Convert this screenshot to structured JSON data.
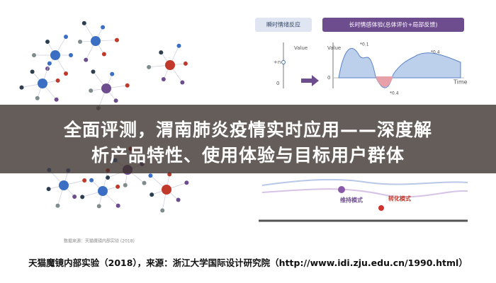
{
  "image": {
    "left_panel": {
      "source_note": "数据来源：天猫魔镜内部实验 (2018)"
    },
    "right_panel": {
      "instant_header": "瞬时情绪反应",
      "longterm_header": "长时情感体验(总体评价+局部反馈)",
      "value_label": "Value",
      "tick_n": "+n",
      "tick_zero": "0",
      "tick_zero_right": "0",
      "time_label": "Time",
      "annotations": [
        "*0.1",
        "*0.4",
        "*0.4"
      ],
      "modes": [
        "维持模式",
        "转化模式"
      ]
    }
  },
  "banner": {
    "line1": "全面评测，渭南肺炎疫情实时应用——深度解",
    "line2": "析产品特性、使用体验与目标用户群体"
  },
  "caption": "天猫魔镜内部实验（2018），来源：浙江大学国际设计研究院（http://www.idi.zju.edu.cn/1990.html）"
}
